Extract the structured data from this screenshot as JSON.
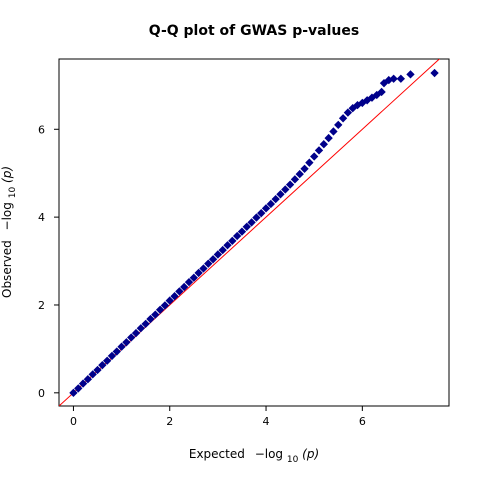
{
  "chart_data": {
    "type": "scatter",
    "title": "Q-Q plot of GWAS p-values",
    "xlabel": {
      "prefix": "Expected",
      "neg_log": "−log",
      "sub": "10",
      "arg": "(p)"
    },
    "ylabel": {
      "prefix": "Observed",
      "neg_log": "−log",
      "sub": "10",
      "arg": "(p)"
    },
    "xlim": [
      -0.3,
      7.8
    ],
    "ylim": [
      -0.3,
      7.6
    ],
    "x_ticks": [
      0,
      2,
      4,
      6
    ],
    "y_ticks": [
      0,
      2,
      4,
      6
    ],
    "x_tick_labels": [
      "0",
      "2",
      "4",
      "6"
    ],
    "y_tick_labels": [
      "0",
      "2",
      "4",
      "6"
    ],
    "grid": false,
    "reference_line": {
      "slope": 1,
      "intercept": 0,
      "color": "#ff0000"
    },
    "point_color": "#00008b",
    "point_marker": "diamond",
    "points": [
      [
        0.0,
        0.0
      ],
      [
        0.1,
        0.1
      ],
      [
        0.2,
        0.21
      ],
      [
        0.3,
        0.31
      ],
      [
        0.4,
        0.42
      ],
      [
        0.5,
        0.52
      ],
      [
        0.6,
        0.63
      ],
      [
        0.7,
        0.73
      ],
      [
        0.8,
        0.84
      ],
      [
        0.9,
        0.94
      ],
      [
        1.0,
        1.05
      ],
      [
        1.1,
        1.15
      ],
      [
        1.2,
        1.26
      ],
      [
        1.3,
        1.36
      ],
      [
        1.4,
        1.47
      ],
      [
        1.5,
        1.57
      ],
      [
        1.6,
        1.68
      ],
      [
        1.7,
        1.78
      ],
      [
        1.8,
        1.89
      ],
      [
        1.9,
        1.99
      ],
      [
        2.0,
        2.1
      ],
      [
        2.1,
        2.2
      ],
      [
        2.2,
        2.31
      ],
      [
        2.3,
        2.41
      ],
      [
        2.4,
        2.52
      ],
      [
        2.5,
        2.62
      ],
      [
        2.6,
        2.73
      ],
      [
        2.7,
        2.83
      ],
      [
        2.8,
        2.94
      ],
      [
        2.9,
        3.04
      ],
      [
        3.0,
        3.15
      ],
      [
        3.1,
        3.25
      ],
      [
        3.2,
        3.36
      ],
      [
        3.3,
        3.46
      ],
      [
        3.4,
        3.57
      ],
      [
        3.5,
        3.67
      ],
      [
        3.6,
        3.78
      ],
      [
        3.7,
        3.88
      ],
      [
        3.8,
        3.99
      ],
      [
        3.9,
        4.09
      ],
      [
        4.0,
        4.2
      ],
      [
        4.1,
        4.3
      ],
      [
        4.2,
        4.41
      ],
      [
        4.3,
        4.52
      ],
      [
        4.4,
        4.63
      ],
      [
        4.5,
        4.74
      ],
      [
        4.6,
        4.86
      ],
      [
        4.7,
        4.98
      ],
      [
        4.8,
        5.1
      ],
      [
        4.9,
        5.24
      ],
      [
        5.0,
        5.38
      ],
      [
        5.1,
        5.52
      ],
      [
        5.2,
        5.66
      ],
      [
        5.3,
        5.8
      ],
      [
        5.4,
        5.95
      ],
      [
        5.5,
        6.1
      ],
      [
        5.6,
        6.25
      ],
      [
        5.7,
        6.38
      ],
      [
        5.8,
        6.48
      ],
      [
        5.9,
        6.55
      ],
      [
        6.0,
        6.6
      ],
      [
        6.1,
        6.66
      ],
      [
        6.2,
        6.72
      ],
      [
        6.3,
        6.78
      ],
      [
        6.4,
        6.85
      ],
      [
        6.45,
        7.05
      ],
      [
        6.55,
        7.12
      ],
      [
        6.65,
        7.15
      ],
      [
        6.8,
        7.15
      ],
      [
        7.0,
        7.25
      ],
      [
        7.5,
        7.28
      ]
    ]
  }
}
